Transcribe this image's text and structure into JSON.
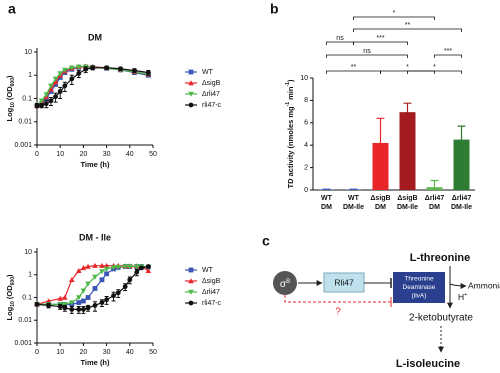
{
  "panel_labels": [
    "a",
    "b",
    "c"
  ],
  "chart_data": [
    {
      "type": "line",
      "title": "DM",
      "xlabel": "Time (h)",
      "ylabel": [
        "Log",
        "10",
        " (OD",
        "600",
        ")"
      ],
      "ylabel_shift": "sub",
      "yscale": "log",
      "xlim": [
        0,
        50
      ],
      "xticks": [
        0,
        10,
        20,
        30,
        40,
        50
      ],
      "ylim": [
        0.001,
        10
      ],
      "yticks": [
        0.001,
        0.01,
        0.1,
        1,
        10
      ],
      "x": [
        0,
        2,
        4,
        6,
        8,
        10,
        12,
        15,
        18,
        21,
        24,
        30,
        36,
        42,
        48
      ],
      "series": [
        {
          "name": "WT",
          "color": "#3a55b4",
          "marker": "square",
          "values": [
            0.05,
            0.06,
            0.1,
            0.2,
            0.4,
            0.8,
            1.3,
            1.8,
            2.2,
            2.3,
            2.2,
            2.0,
            1.7,
            1.3,
            1.0
          ]
        },
        {
          "name": "ΔsigB",
          "color": "#e8262a",
          "marker": "triangle",
          "values": [
            0.05,
            0.07,
            0.12,
            0.25,
            0.5,
            1.0,
            1.5,
            2.0,
            2.3,
            2.4,
            2.3,
            2.1,
            1.8,
            1.4,
            1.1
          ]
        },
        {
          "name": "Δrli47",
          "color": "#4db848",
          "marker": "down",
          "values": [
            0.05,
            0.08,
            0.15,
            0.35,
            0.7,
            1.2,
            1.7,
            2.1,
            2.3,
            2.3,
            2.2,
            2.0,
            1.7,
            1.4,
            1.1
          ]
        },
        {
          "name": "rli47-c",
          "color": "#111111",
          "marker": "circle",
          "values": [
            0.05,
            0.05,
            0.06,
            0.08,
            0.12,
            0.2,
            0.35,
            0.7,
            1.2,
            1.8,
            2.1,
            2.1,
            1.9,
            1.6,
            1.3
          ],
          "errors": [
            0.01,
            0.01,
            0.02,
            0.03,
            0.05,
            0.1,
            0.15,
            0.3,
            0.4,
            0.5,
            0.4,
            0.3,
            0.3,
            0.3,
            0.3
          ]
        }
      ]
    },
    {
      "type": "line",
      "title": "DM - Ile",
      "xlabel": "Time (h)",
      "ylabel": [
        "Log",
        "10",
        " (OD",
        "600",
        ")"
      ],
      "ylabel_shift": "sub",
      "yscale": "log",
      "xlim": [
        0,
        50
      ],
      "xticks": [
        0,
        10,
        20,
        30,
        40,
        50
      ],
      "ylim": [
        0.001,
        10
      ],
      "yticks": [
        0.001,
        0.01,
        0.1,
        1,
        10
      ],
      "x": [
        0,
        5,
        10,
        12,
        15,
        18,
        20,
        22,
        25,
        28,
        30,
        33,
        35,
        38,
        40,
        43,
        45,
        48
      ],
      "series": [
        {
          "name": "WT",
          "color": "#3a55b4",
          "marker": "square",
          "values": [
            0.05,
            0.05,
            0.05,
            0.05,
            0.05,
            0.06,
            0.07,
            0.1,
            0.25,
            0.6,
            1.1,
            1.8,
            2.1,
            2.3,
            2.3,
            2.3,
            2.3,
            2.2
          ]
        },
        {
          "name": "ΔsigB",
          "color": "#e8262a",
          "marker": "triangle",
          "values": [
            0.05,
            0.07,
            0.09,
            0.1,
            0.6,
            1.5,
            2.0,
            2.3,
            2.5,
            2.5,
            2.5,
            2.5,
            2.5,
            2.4,
            2.4,
            2.4,
            2.3,
            1.5
          ]
        },
        {
          "name": "Δrli47",
          "color": "#4db848",
          "marker": "down",
          "values": [
            0.05,
            0.05,
            0.05,
            0.05,
            0.06,
            0.1,
            0.2,
            0.4,
            0.8,
            1.4,
            1.8,
            2.1,
            2.2,
            2.3,
            2.3,
            2.3,
            2.3,
            2.2
          ]
        },
        {
          "name": "rli47-c",
          "color": "#111111",
          "marker": "circle",
          "values": [
            0.05,
            0.045,
            0.04,
            0.035,
            0.03,
            0.03,
            0.03,
            0.035,
            0.045,
            0.06,
            0.08,
            0.12,
            0.16,
            0.3,
            0.6,
            1.3,
            2.0,
            2.3
          ],
          "errors": [
            0.005,
            0.01,
            0.01,
            0.01,
            0.01,
            0.01,
            0.01,
            0.01,
            0.02,
            0.02,
            0.03,
            0.05,
            0.06,
            0.1,
            0.2,
            0.4,
            0.3,
            0.2
          ]
        }
      ]
    },
    {
      "type": "bar",
      "ylabel": [
        "TD activity (nmoles mg",
        "-1",
        " min",
        "-1",
        ")"
      ],
      "ylabel_shift": "super",
      "ylim": [
        0,
        10
      ],
      "yticks": [
        0,
        2,
        4,
        6,
        8,
        10
      ],
      "categories": [
        [
          "WT",
          "DM"
        ],
        [
          "WT",
          "DM-Ile"
        ],
        [
          "ΔsigB",
          "DM"
        ],
        [
          "ΔsigB",
          "DM-Ile"
        ],
        [
          "Δrli47",
          "DM"
        ],
        [
          "Δrli47",
          "DM-Ile"
        ]
      ],
      "values": [
        0.05,
        0.05,
        4.2,
        6.95,
        0.25,
        4.5
      ],
      "errors": [
        0.02,
        0.02,
        2.2,
        0.8,
        0.6,
        1.2
      ],
      "colors": [
        "#3a55b4",
        "#3a55b4",
        "#e8262a",
        "#a51c20",
        "#5ab94a",
        "#2e7d32"
      ],
      "significance": [
        {
          "from": 1,
          "to": 4,
          "label": "*"
        },
        {
          "from": 1,
          "to": 5,
          "label": "**"
        },
        {
          "from": 0,
          "to": 1,
          "label": "ns"
        },
        {
          "from": 1,
          "to": 3,
          "label": "***"
        },
        {
          "from": 0,
          "to": 3,
          "label": "ns"
        },
        {
          "from": 4,
          "to": 5,
          "label": "***"
        },
        {
          "from": 0,
          "to": 2,
          "label": "**"
        },
        {
          "from": 2,
          "to": 4,
          "label": "*"
        },
        {
          "from": 3,
          "to": 5,
          "label": "*"
        }
      ]
    }
  ],
  "diagram": {
    "sigma": [
      "σ",
      "B"
    ],
    "rli47": "Rli47",
    "question": "?",
    "enzyme": [
      "Threonine",
      "Deaminase",
      "(ilvA)"
    ],
    "threonine": "L-threonine",
    "ammonia": "Ammonia",
    "proton": [
      "H",
      "+"
    ],
    "ketobutyrate": "2-ketobutyrate",
    "isoleucine": "L-isoleucine"
  }
}
